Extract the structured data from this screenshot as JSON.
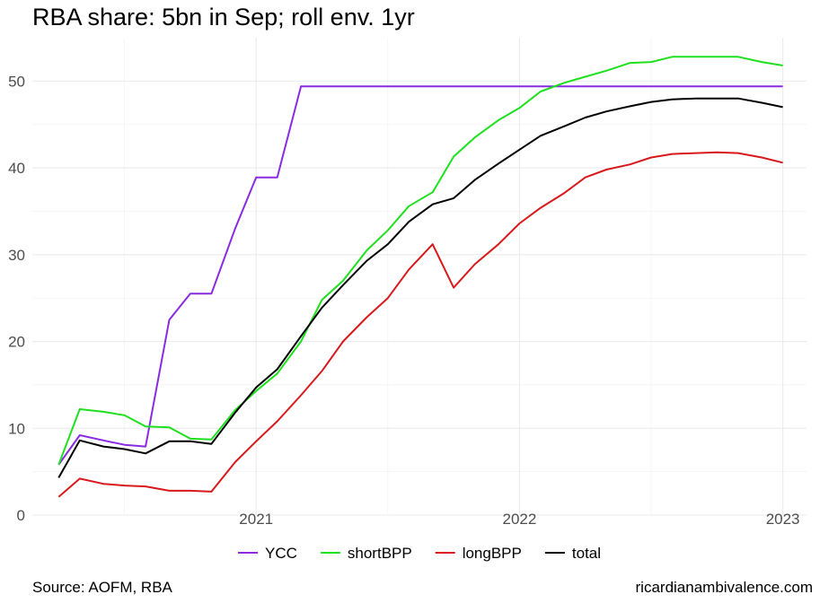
{
  "chart_data": {
    "type": "line",
    "title": "RBA share: 5bn in Sep; roll env. 1yr",
    "xlabel": "",
    "ylabel": "",
    "x_ticks": [
      {
        "label": "2021",
        "value": 2021.0
      },
      {
        "label": "2022",
        "value": 2022.0
      },
      {
        "label": "2023",
        "value": 2023.0
      }
    ],
    "y_ticks": [
      0,
      10,
      20,
      30,
      40,
      50
    ],
    "xlim": [
      2020.15,
      2023.09
    ],
    "ylim": [
      0,
      55
    ],
    "grid": true,
    "legend_position": "bottom",
    "x": [
      2020.25,
      2020.33,
      2020.42,
      2020.5,
      2020.58,
      2020.67,
      2020.75,
      2020.83,
      2020.92,
      2021.0,
      2021.08,
      2021.17,
      2021.25,
      2021.33,
      2021.42,
      2021.5,
      2021.58,
      2021.67,
      2021.75,
      2021.83,
      2021.92,
      2022.0,
      2022.08,
      2022.17,
      2022.25,
      2022.33,
      2022.42,
      2022.5,
      2022.58,
      2022.67,
      2022.75,
      2022.83,
      2022.92,
      2023.0
    ],
    "series": [
      {
        "name": "YCC",
        "color": "#8a2be2",
        "values": [
          5.8,
          9.2,
          8.6,
          8.1,
          7.9,
          22.5,
          25.5,
          25.5,
          33.0,
          38.9,
          38.9,
          49.4,
          49.4,
          49.4,
          49.4,
          49.4,
          49.4,
          49.4,
          49.4,
          49.4,
          49.4,
          49.4,
          49.4,
          49.4,
          49.4,
          49.4,
          49.4,
          49.4,
          49.4,
          49.4,
          49.4,
          49.4,
          49.4,
          49.4
        ]
      },
      {
        "name": "shortBPP",
        "color": "#1ee01e",
        "values": [
          5.8,
          12.2,
          11.9,
          11.5,
          10.2,
          10.1,
          8.8,
          8.7,
          12.1,
          14.3,
          16.3,
          20.0,
          24.8,
          27.0,
          30.5,
          32.8,
          35.6,
          37.2,
          41.3,
          43.5,
          45.5,
          46.9,
          48.8,
          49.8,
          50.5,
          51.2,
          52.1,
          52.2,
          52.8,
          52.8,
          52.8,
          52.8,
          52.2,
          51.8
        ]
      },
      {
        "name": "longBPP",
        "color": "#d7191c",
        "values": [
          2.1,
          4.2,
          3.6,
          3.4,
          3.3,
          2.8,
          2.8,
          2.7,
          6.1,
          8.5,
          10.8,
          13.8,
          16.6,
          20.0,
          22.8,
          25.0,
          28.3,
          31.2,
          26.2,
          28.9,
          31.2,
          33.6,
          35.4,
          37.1,
          38.9,
          39.8,
          40.4,
          41.2,
          41.6,
          41.7,
          41.8,
          41.7,
          41.2,
          40.6
        ]
      },
      {
        "name": "total",
        "color": "#000000",
        "values": [
          4.3,
          8.6,
          7.9,
          7.6,
          7.1,
          8.5,
          8.5,
          8.2,
          11.8,
          14.7,
          16.8,
          20.6,
          23.9,
          26.5,
          29.3,
          31.2,
          33.8,
          35.8,
          36.5,
          38.6,
          40.5,
          42.1,
          43.7,
          44.8,
          45.8,
          46.5,
          47.1,
          47.6,
          47.9,
          48.0,
          48.0,
          48.0,
          47.5,
          47.0
        ]
      }
    ]
  },
  "footer": {
    "source": "Source: AOFM, RBA",
    "site": "ricardianambivalence.com"
  }
}
